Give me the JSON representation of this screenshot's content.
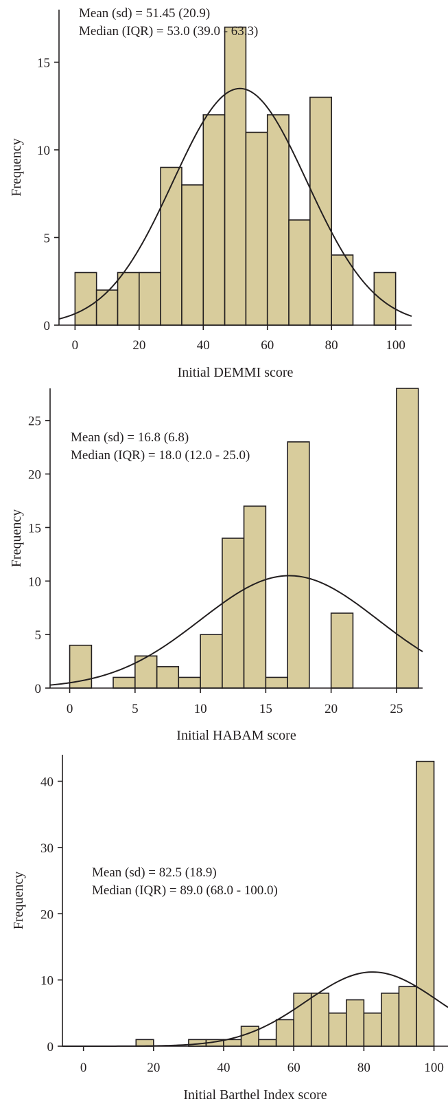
{
  "colors": {
    "bar_fill": "#d8cc9c",
    "ink": "#231f20"
  },
  "chart_data": [
    {
      "type": "bar",
      "subtype": "histogram-with-normal-curve",
      "xlabel": "Initial DEMMI score",
      "ylabel": "Frequency",
      "annotation": [
        "Mean (sd) = 51.45 (20.9)",
        "Median (IQR) = 53.0 (39.0 - 63.3)"
      ],
      "xlim": [
        -5,
        105
      ],
      "ylim": [
        0,
        18
      ],
      "xticks": [
        0,
        20,
        40,
        60,
        80,
        100
      ],
      "yticks": [
        0,
        5,
        10,
        15
      ],
      "bins": [
        {
          "start": 0,
          "end": 6.7,
          "count": 3
        },
        {
          "start": 6.7,
          "end": 13.3,
          "count": 2
        },
        {
          "start": 13.3,
          "end": 20,
          "count": 3
        },
        {
          "start": 20,
          "end": 26.7,
          "count": 3
        },
        {
          "start": 26.7,
          "end": 33.3,
          "count": 9
        },
        {
          "start": 33.3,
          "end": 40,
          "count": 8
        },
        {
          "start": 40,
          "end": 46.7,
          "count": 12
        },
        {
          "start": 46.7,
          "end": 53.3,
          "count": 17
        },
        {
          "start": 53.3,
          "end": 60,
          "count": 11
        },
        {
          "start": 60,
          "end": 66.7,
          "count": 12
        },
        {
          "start": 66.7,
          "end": 73.3,
          "count": 6
        },
        {
          "start": 73.3,
          "end": 80,
          "count": 13
        },
        {
          "start": 80,
          "end": 86.7,
          "count": 4
        },
        {
          "start": 93.3,
          "end": 100,
          "count": 3
        }
      ],
      "normal_curve": {
        "mean": 51.45,
        "sd": 20.9,
        "peak": 13.5
      }
    },
    {
      "type": "bar",
      "subtype": "histogram-with-normal-curve",
      "xlabel": "Initial HABAM score",
      "ylabel": "Frequency",
      "annotation": [
        "Mean (sd) = 16.8 (6.8)",
        "Median (IQR) = 18.0 (12.0 - 25.0)"
      ],
      "xlim": [
        -1.5,
        27
      ],
      "ylim": [
        0,
        28
      ],
      "xticks": [
        0,
        5,
        10,
        15,
        20,
        25
      ],
      "yticks": [
        0,
        5,
        10,
        15,
        20,
        25
      ],
      "bins": [
        {
          "start": 0,
          "end": 1.67,
          "count": 4
        },
        {
          "start": 3.33,
          "end": 5,
          "count": 1
        },
        {
          "start": 5,
          "end": 6.67,
          "count": 3
        },
        {
          "start": 6.67,
          "end": 8.33,
          "count": 2
        },
        {
          "start": 8.33,
          "end": 10,
          "count": 1
        },
        {
          "start": 10,
          "end": 11.67,
          "count": 5
        },
        {
          "start": 11.67,
          "end": 13.33,
          "count": 14
        },
        {
          "start": 13.33,
          "end": 15,
          "count": 17
        },
        {
          "start": 15,
          "end": 16.67,
          "count": 1
        },
        {
          "start": 16.67,
          "end": 18.33,
          "count": 23
        },
        {
          "start": 20,
          "end": 21.67,
          "count": 7
        },
        {
          "start": 25,
          "end": 26.67,
          "count": 28
        }
      ],
      "normal_curve": {
        "mean": 16.8,
        "sd": 6.8,
        "peak": 10.5
      }
    },
    {
      "type": "bar",
      "subtype": "histogram-with-normal-curve",
      "xlabel": "Initial Barthel Index score",
      "ylabel": "Frequency",
      "annotation": [
        "Mean (sd) = 82.5 (18.9)",
        "Median (IQR) = 89.0 (68.0 - 100.0)"
      ],
      "xlim": [
        -6,
        104
      ],
      "ylim": [
        0,
        44
      ],
      "xticks": [
        0,
        20,
        40,
        60,
        80,
        100
      ],
      "yticks": [
        0,
        10,
        20,
        30,
        40
      ],
      "bins": [
        {
          "start": 15,
          "end": 20,
          "count": 1
        },
        {
          "start": 30,
          "end": 35,
          "count": 1
        },
        {
          "start": 35,
          "end": 40,
          "count": 1
        },
        {
          "start": 40,
          "end": 45,
          "count": 1
        },
        {
          "start": 45,
          "end": 50,
          "count": 3
        },
        {
          "start": 50,
          "end": 55,
          "count": 1
        },
        {
          "start": 55,
          "end": 60,
          "count": 4
        },
        {
          "start": 60,
          "end": 65,
          "count": 8
        },
        {
          "start": 65,
          "end": 70,
          "count": 8
        },
        {
          "start": 70,
          "end": 75,
          "count": 5
        },
        {
          "start": 75,
          "end": 80,
          "count": 7
        },
        {
          "start": 80,
          "end": 85,
          "count": 5
        },
        {
          "start": 85,
          "end": 90,
          "count": 8
        },
        {
          "start": 90,
          "end": 95,
          "count": 9
        },
        {
          "start": 95,
          "end": 100,
          "count": 43
        }
      ],
      "normal_curve": {
        "mean": 82.5,
        "sd": 18.9,
        "peak": 11.2
      }
    }
  ]
}
